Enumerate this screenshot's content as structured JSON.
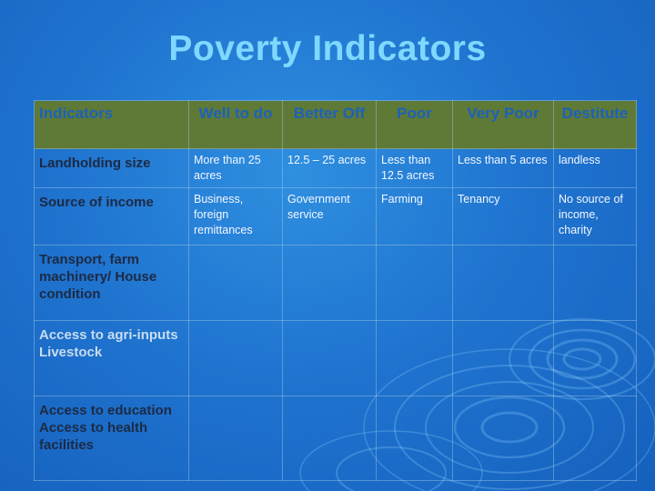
{
  "slide": {
    "title": "Poverty Indicators",
    "background_color": "#1f74cf",
    "title_color": "#7fd8ff",
    "header_fill": "#5f7a37"
  },
  "table": {
    "headers": [
      "Indicators",
      "Well to do",
      "Better Off",
      "Poor",
      "Very Poor",
      "Destitute"
    ],
    "rows": [
      {
        "label": "Landholding size",
        "cells": [
          "More than 25 acres",
          "12.5 – 25 acres",
          "Less than 12.5 acres",
          "Less than 5 acres",
          "landless"
        ]
      },
      {
        "label": "Source of income",
        "cells": [
          "Business, foreign remittances",
          "Government service",
          "Farming",
          "Tenancy",
          "No source of income, charity"
        ]
      },
      {
        "label": "Transport, farm machinery/ House condition",
        "cells": [
          "",
          "",
          "",
          "",
          ""
        ]
      },
      {
        "label": "Access to agri-inputs Livestock",
        "cells": [
          "",
          "",
          "",
          "",
          ""
        ]
      },
      {
        "label": "Access to education Access to health facilities",
        "cells": [
          "",
          "",
          "",
          "",
          ""
        ]
      }
    ]
  }
}
